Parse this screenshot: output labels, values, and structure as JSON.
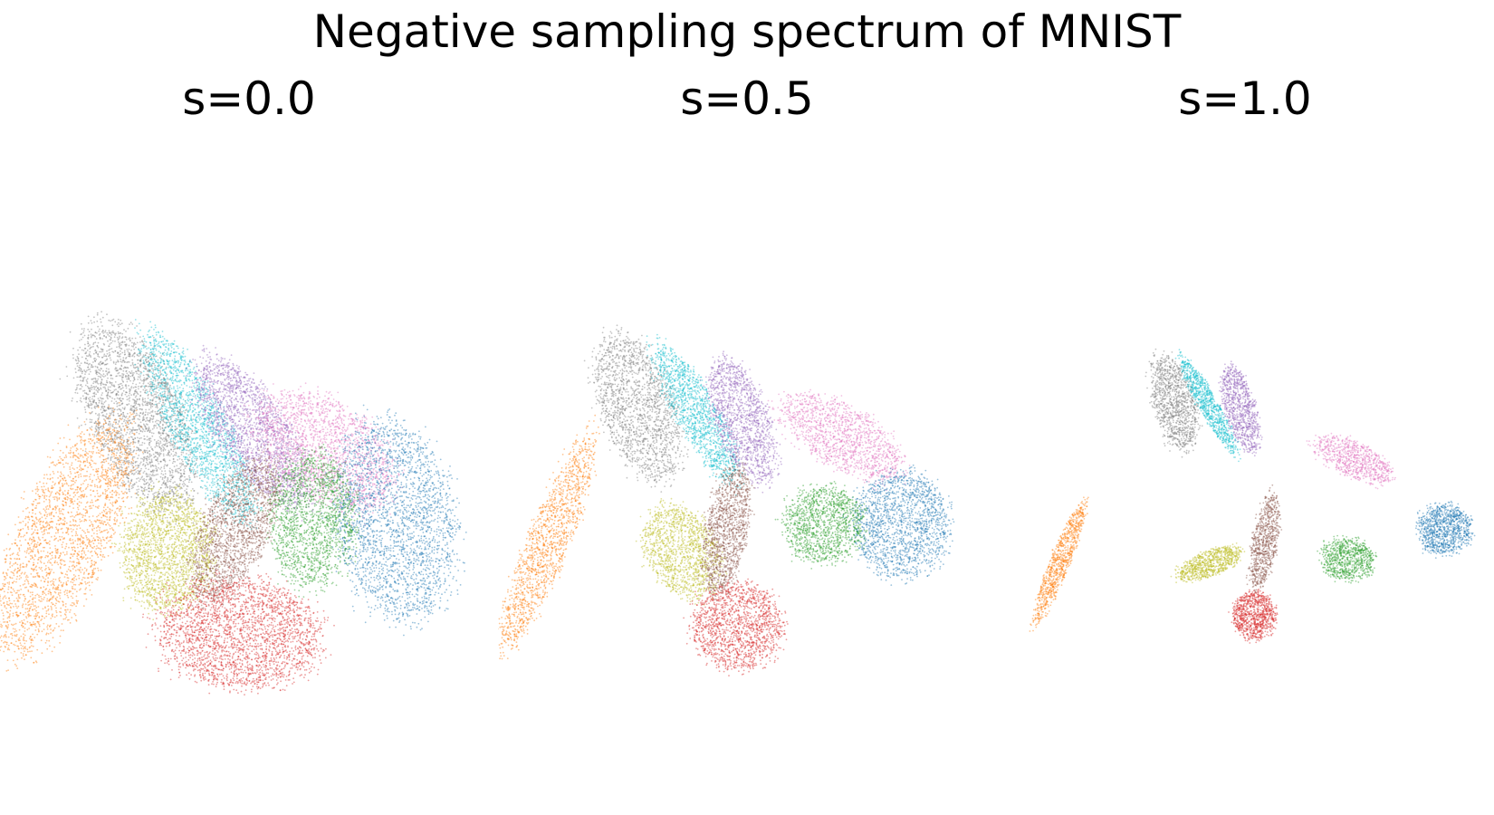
{
  "figure": {
    "title": "Negative sampling spectrum of MNIST"
  },
  "chart_data": {
    "type": "scatter",
    "title": "Negative sampling spectrum of MNIST",
    "axes_visible": false,
    "point_alpha": "semi-transparent",
    "classes": [
      {
        "color": "#1f77b4"
      },
      {
        "color": "#ff7f0e"
      },
      {
        "color": "#2ca02c"
      },
      {
        "color": "#d62728"
      },
      {
        "color": "#9467bd"
      },
      {
        "color": "#8c564b"
      },
      {
        "color": "#e377c2"
      },
      {
        "color": "#7f7f7f"
      },
      {
        "color": "#bcbd22"
      },
      {
        "color": "#17becf"
      }
    ],
    "panels": [
      {
        "title": "s=0.0",
        "clusters": [
          {
            "class": 7,
            "cx": -1.25,
            "cy": 0.8,
            "rx": 0.48,
            "ry": 1.05,
            "rot": 25,
            "n": 2600
          },
          {
            "class": 9,
            "cx": -0.55,
            "cy": 0.68,
            "rx": 0.3,
            "ry": 1.1,
            "rot": 28,
            "n": 1900
          },
          {
            "class": 4,
            "cx": 0.05,
            "cy": 0.62,
            "rx": 0.36,
            "ry": 0.92,
            "rot": 35,
            "n": 2000
          },
          {
            "class": 6,
            "cx": 0.85,
            "cy": 0.42,
            "rx": 0.5,
            "ry": 0.82,
            "rot": 55,
            "n": 2000
          },
          {
            "class": 0,
            "cx": 1.62,
            "cy": -0.35,
            "rx": 0.62,
            "ry": 1.05,
            "rot": 10,
            "n": 2600
          },
          {
            "class": 1,
            "cx": -2.05,
            "cy": -0.55,
            "rx": 0.48,
            "ry": 1.35,
            "rot": -25,
            "n": 2400
          },
          {
            "class": 8,
            "cx": -0.9,
            "cy": -0.7,
            "rx": 0.48,
            "ry": 0.62,
            "rot": 0,
            "n": 1900
          },
          {
            "class": 5,
            "cx": -0.15,
            "cy": -0.45,
            "rx": 0.35,
            "ry": 0.8,
            "rot": -25,
            "n": 1800
          },
          {
            "class": 2,
            "cx": 0.7,
            "cy": -0.35,
            "rx": 0.45,
            "ry": 0.7,
            "rot": 0,
            "n": 1800
          },
          {
            "class": 3,
            "cx": -0.1,
            "cy": -1.6,
            "rx": 0.85,
            "ry": 0.57,
            "rot": -5,
            "n": 2600
          }
        ]
      },
      {
        "title": "s=0.5",
        "clusters": [
          {
            "class": 7,
            "cx": -1.2,
            "cy": 0.9,
            "rx": 0.38,
            "ry": 0.8,
            "rot": 20,
            "n": 1700
          },
          {
            "class": 9,
            "cx": -0.55,
            "cy": 0.82,
            "rx": 0.22,
            "ry": 0.82,
            "rot": 30,
            "n": 1400
          },
          {
            "class": 4,
            "cx": -0.05,
            "cy": 0.75,
            "rx": 0.28,
            "ry": 0.68,
            "rot": 20,
            "n": 1400
          },
          {
            "class": 6,
            "cx": 1.05,
            "cy": 0.58,
            "rx": 0.32,
            "ry": 0.72,
            "rot": 60,
            "n": 1400
          },
          {
            "class": 0,
            "cx": 1.7,
            "cy": -0.4,
            "rx": 0.5,
            "ry": 0.55,
            "rot": 0,
            "n": 1700
          },
          {
            "class": 1,
            "cx": -2.2,
            "cy": -0.6,
            "rx": 0.22,
            "ry": 1.2,
            "rot": -22,
            "n": 1500
          },
          {
            "class": 8,
            "cx": -0.72,
            "cy": -0.7,
            "rx": 0.36,
            "ry": 0.52,
            "rot": 30,
            "n": 1300
          },
          {
            "class": 5,
            "cx": -0.22,
            "cy": -0.45,
            "rx": 0.22,
            "ry": 0.68,
            "rot": -10,
            "n": 1300
          },
          {
            "class": 2,
            "cx": 0.85,
            "cy": -0.4,
            "rx": 0.42,
            "ry": 0.4,
            "rot": 0,
            "n": 1300
          },
          {
            "class": 3,
            "cx": -0.1,
            "cy": -1.52,
            "rx": 0.47,
            "ry": 0.45,
            "rot": 0,
            "n": 1500
          }
        ]
      },
      {
        "title": "s=1.0",
        "clusters": [
          {
            "class": 7,
            "cx": -0.78,
            "cy": 0.95,
            "rx": 0.22,
            "ry": 0.5,
            "rot": 15,
            "n": 1100
          },
          {
            "class": 9,
            "cx": -0.4,
            "cy": 0.92,
            "rx": 0.1,
            "ry": 0.58,
            "rot": 30,
            "n": 900
          },
          {
            "class": 4,
            "cx": -0.05,
            "cy": 0.88,
            "rx": 0.16,
            "ry": 0.46,
            "rot": 15,
            "n": 900
          },
          {
            "class": 6,
            "cx": 1.2,
            "cy": 0.33,
            "rx": 0.18,
            "ry": 0.44,
            "rot": 65,
            "n": 800
          },
          {
            "class": 0,
            "cx": 2.2,
            "cy": -0.45,
            "rx": 0.28,
            "ry": 0.26,
            "rot": 0,
            "n": 1000
          },
          {
            "class": 1,
            "cx": -2.05,
            "cy": -0.82,
            "rx": 0.1,
            "ry": 0.68,
            "rot": -22,
            "n": 900
          },
          {
            "class": 8,
            "cx": -0.38,
            "cy": -0.82,
            "rx": 0.36,
            "ry": 0.13,
            "rot": 22,
            "n": 800
          },
          {
            "class": 5,
            "cx": 0.22,
            "cy": -0.58,
            "rx": 0.13,
            "ry": 0.5,
            "rot": -10,
            "n": 800
          },
          {
            "class": 2,
            "cx": 1.13,
            "cy": -0.78,
            "rx": 0.28,
            "ry": 0.22,
            "rot": -10,
            "n": 800
          },
          {
            "class": 3,
            "cx": 0.1,
            "cy": -1.4,
            "rx": 0.22,
            "ry": 0.25,
            "rot": 0,
            "n": 900
          }
        ]
      }
    ]
  }
}
